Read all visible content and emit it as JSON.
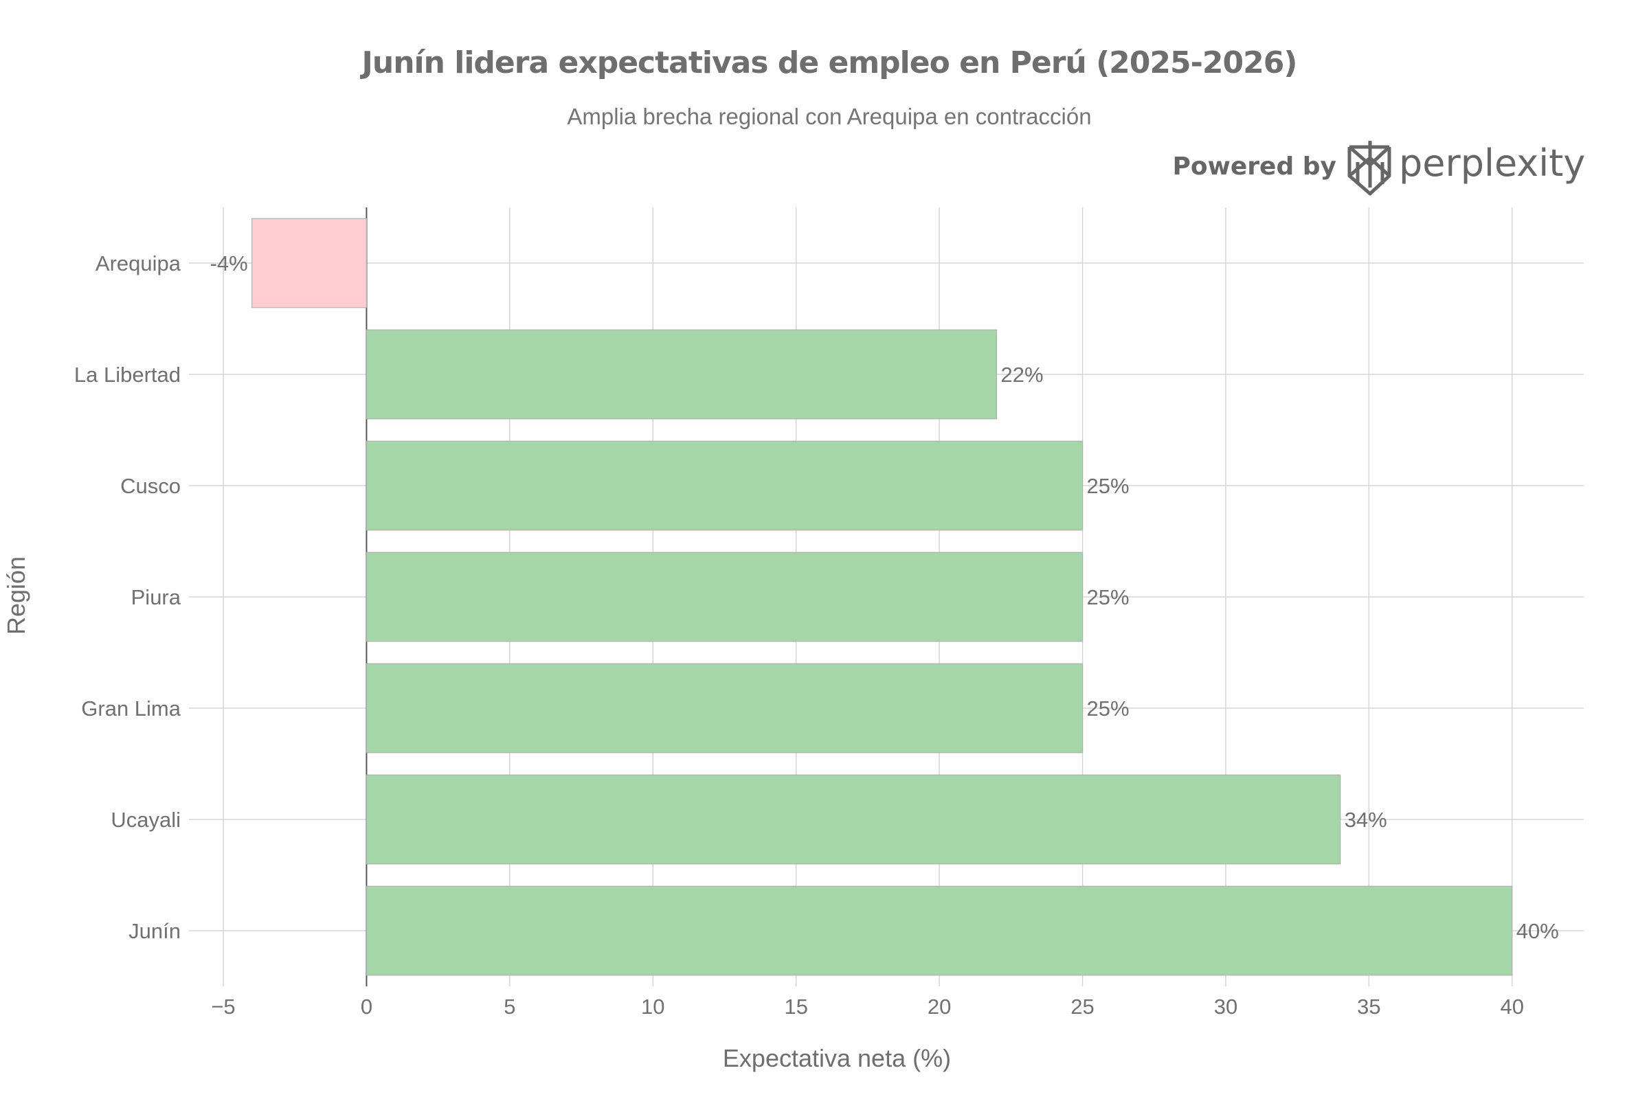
{
  "branding": {
    "powered_by": "Powered by",
    "brand": "perplexity",
    "logo_icon": "perplexity-logo-icon"
  },
  "chart_data": {
    "type": "bar",
    "orientation": "horizontal",
    "title": "Junín lidera expectativas de empleo en Perú (2025-2026)",
    "subtitle": "Amplia brecha regional con Arequipa en contracción",
    "xlabel": "Expectativa neta (%)",
    "ylabel": "Región",
    "categories": [
      "Arequipa",
      "La Libertad",
      "Cusco",
      "Piura",
      "Gran Lima",
      "Ucayali",
      "Junín"
    ],
    "values": [
      -4,
      22,
      25,
      25,
      25,
      34,
      40
    ],
    "data_labels": [
      "-4%",
      "22%",
      "25%",
      "25%",
      "25%",
      "34%",
      "40%"
    ],
    "xlim": [
      -6.2,
      42.5
    ],
    "xticks": [
      -5,
      0,
      5,
      10,
      15,
      20,
      25,
      30,
      35,
      40
    ],
    "xtick_labels": [
      "−5",
      "0",
      "5",
      "10",
      "15",
      "20",
      "25",
      "30",
      "35",
      "40"
    ],
    "grid": true,
    "legend": "none",
    "colors": {
      "positive": "#a5d6a7",
      "negative": "#ffcdd2",
      "bar_border": "#b0b0b0"
    }
  }
}
